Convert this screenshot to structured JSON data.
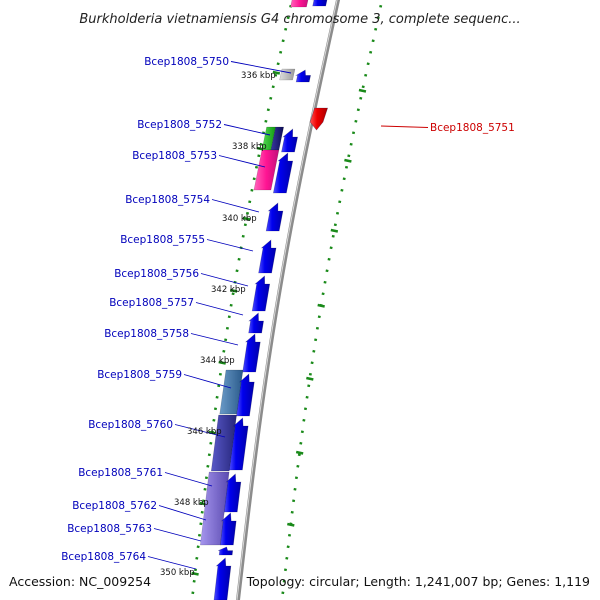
{
  "title": "Burkholderia vietnamiensis G4 chromosome 3, complete sequenc...",
  "footer": {
    "accession": "Accession: NC_009254",
    "topology": "Topology: circular; Length: 1,241,007 bp; Genes: 1,119"
  },
  "colors": {
    "backbone": "#8c8c8c",
    "tick": "#1a8a1a",
    "forward_gene": "#0000ee",
    "reverse_gene": "#ee0000",
    "label_forward": "#0000bb",
    "label_reverse": "#cc0000"
  },
  "scale_labels": [
    "336 kbp",
    "338 kbp",
    "340 kbp",
    "342 kbp",
    "344 kbp",
    "346 kbp",
    "348 kbp",
    "350 kbp"
  ],
  "genes": [
    {
      "id": "Bcep1808_5750",
      "strand": "+"
    },
    {
      "id": "Bcep1808_5751",
      "strand": "-"
    },
    {
      "id": "Bcep1808_5752",
      "strand": "+"
    },
    {
      "id": "Bcep1808_5753",
      "strand": "+"
    },
    {
      "id": "Bcep1808_5754",
      "strand": "+"
    },
    {
      "id": "Bcep1808_5755",
      "strand": "+"
    },
    {
      "id": "Bcep1808_5756",
      "strand": "+"
    },
    {
      "id": "Bcep1808_5757",
      "strand": "+"
    },
    {
      "id": "Bcep1808_5758",
      "strand": "+"
    },
    {
      "id": "Bcep1808_5759",
      "strand": "+"
    },
    {
      "id": "Bcep1808_5760",
      "strand": "+"
    },
    {
      "id": "Bcep1808_5761",
      "strand": "+"
    },
    {
      "id": "Bcep1808_5762",
      "strand": "+"
    },
    {
      "id": "Bcep1808_5763",
      "strand": "+"
    },
    {
      "id": "Bcep1808_5764",
      "strand": "+"
    }
  ]
}
